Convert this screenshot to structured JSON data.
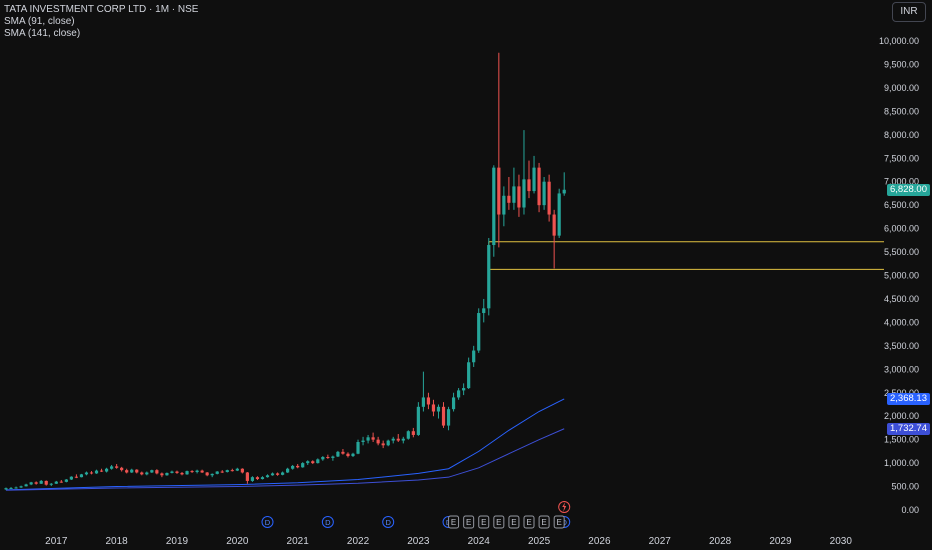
{
  "header": {
    "symbol_line": "TATA INVESTMENT CORP LTD · 1M · NSE",
    "indicators": [
      "SMA (91, close)",
      "SMA (141, close)"
    ],
    "currency_button": "INR"
  },
  "colors": {
    "background": "#0f0f0f",
    "up": "#26a69a",
    "down": "#ef5350",
    "sma_91": "#2962ff",
    "sma_141": "#3d4fd6",
    "hline": "#e0c040",
    "axis_text": "#d1d4dc"
  },
  "event_markers": {
    "dividend_label": "D",
    "earnings_label": "E",
    "split_icon": "lightning-icon",
    "dividends": [
      "2020-07",
      "2021-07",
      "2022-07",
      "2023-07",
      "2025-06"
    ],
    "earnings": [
      "2023-08",
      "2023-11",
      "2024-02",
      "2024-05",
      "2024-08",
      "2024-11",
      "2025-02",
      "2025-05"
    ],
    "split": "2025-06"
  },
  "chart_data": {
    "type": "candlestick",
    "title": "",
    "xlabel": "",
    "ylabel": "",
    "ylim": [
      0,
      10000
    ],
    "yticks": [
      0,
      500,
      1000,
      1500,
      2000,
      2500,
      3000,
      3500,
      4000,
      4500,
      5000,
      5500,
      6000,
      6500,
      7000,
      7500,
      8000,
      8500,
      9000,
      9500,
      10000
    ],
    "ytick_labels": [
      "0.00",
      "500.00",
      "1,000.00",
      "1,500.00",
      "2,000.00",
      "2,500.00",
      "3,000.00",
      "3,500.00",
      "4,000.00",
      "4,500.00",
      "5,000.00",
      "5,500.00",
      "6,000.00",
      "6,500.00",
      "7,000.00",
      "7,500.00",
      "8,000.00",
      "8,500.00",
      "9,000.00",
      "9,500.00",
      "10,000.00"
    ],
    "x_range": [
      "2016-03",
      "2030-08"
    ],
    "xtick_labels": [
      "2017",
      "2018",
      "2019",
      "2020",
      "2021",
      "2022",
      "2023",
      "2024",
      "2025",
      "2026",
      "2027",
      "2028",
      "2029",
      "2030"
    ],
    "legend": "top-left",
    "grid": false,
    "horizontal_lines": [
      5720,
      5130
    ],
    "last_price": 6828.0,
    "last_price_label": "6,828.00",
    "series": [
      {
        "name": "SMA (91, close)",
        "type": "line",
        "last_value": 2368.13,
        "last_label": "2,368.13",
        "points": [
          [
            "2016-03",
            430
          ],
          [
            "2018-01",
            500
          ],
          [
            "2020-01",
            540
          ],
          [
            "2021-01",
            580
          ],
          [
            "2022-01",
            650
          ],
          [
            "2023-01",
            780
          ],
          [
            "2023-07",
            880
          ],
          [
            "2024-01",
            1250
          ],
          [
            "2024-07",
            1700
          ],
          [
            "2025-01",
            2100
          ],
          [
            "2025-06",
            2368.13
          ]
        ]
      },
      {
        "name": "SMA (141, close)",
        "type": "line",
        "last_value": 1732.74,
        "last_label": "1,732.74",
        "points": [
          [
            "2016-03",
            420
          ],
          [
            "2018-01",
            470
          ],
          [
            "2020-01",
            500
          ],
          [
            "2021-01",
            530
          ],
          [
            "2022-01",
            570
          ],
          [
            "2023-01",
            640
          ],
          [
            "2023-07",
            700
          ],
          [
            "2024-01",
            900
          ],
          [
            "2024-07",
            1200
          ],
          [
            "2025-01",
            1500
          ],
          [
            "2025-06",
            1732.74
          ]
        ]
      }
    ],
    "candles": [
      [
        "2016-03",
        440,
        480,
        425,
        465
      ],
      [
        "2016-04",
        465,
        490,
        450,
        470
      ],
      [
        "2016-05",
        470,
        500,
        455,
        480
      ],
      [
        "2016-06",
        480,
        520,
        470,
        505
      ],
      [
        "2016-07",
        505,
        560,
        500,
        545
      ],
      [
        "2016-08",
        545,
        600,
        530,
        590
      ],
      [
        "2016-09",
        590,
        610,
        540,
        560
      ],
      [
        "2016-10",
        560,
        640,
        555,
        620
      ],
      [
        "2016-11",
        620,
        630,
        520,
        540
      ],
      [
        "2016-12",
        540,
        575,
        510,
        560
      ],
      [
        "2017-01",
        560,
        620,
        555,
        605
      ],
      [
        "2017-02",
        605,
        640,
        580,
        600
      ],
      [
        "2017-03",
        600,
        660,
        590,
        650
      ],
      [
        "2017-04",
        650,
        720,
        640,
        710
      ],
      [
        "2017-05",
        710,
        760,
        680,
        700
      ],
      [
        "2017-06",
        700,
        770,
        695,
        760
      ],
      [
        "2017-07",
        760,
        820,
        740,
        800
      ],
      [
        "2017-08",
        800,
        830,
        760,
        780
      ],
      [
        "2017-09",
        780,
        860,
        770,
        840
      ],
      [
        "2017-10",
        840,
        880,
        810,
        820
      ],
      [
        "2017-11",
        820,
        900,
        800,
        880
      ],
      [
        "2017-12",
        880,
        960,
        860,
        930
      ],
      [
        "2018-01",
        930,
        980,
        880,
        900
      ],
      [
        "2018-02",
        900,
        920,
        820,
        850
      ],
      [
        "2018-03",
        850,
        880,
        780,
        800
      ],
      [
        "2018-04",
        800,
        880,
        790,
        860
      ],
      [
        "2018-05",
        860,
        870,
        780,
        800
      ],
      [
        "2018-06",
        800,
        820,
        740,
        760
      ],
      [
        "2018-07",
        760,
        820,
        740,
        800
      ],
      [
        "2018-08",
        800,
        860,
        790,
        850
      ],
      [
        "2018-09",
        850,
        870,
        760,
        780
      ],
      [
        "2018-10",
        780,
        800,
        700,
        740
      ],
      [
        "2018-11",
        740,
        800,
        730,
        790
      ],
      [
        "2018-12",
        790,
        840,
        780,
        820
      ],
      [
        "2019-01",
        820,
        840,
        770,
        790
      ],
      [
        "2019-02",
        790,
        810,
        740,
        760
      ],
      [
        "2019-03",
        760,
        840,
        750,
        830
      ],
      [
        "2019-04",
        830,
        850,
        790,
        810
      ],
      [
        "2019-05",
        810,
        860,
        780,
        840
      ],
      [
        "2019-06",
        840,
        860,
        790,
        800
      ],
      [
        "2019-07",
        800,
        810,
        720,
        740
      ],
      [
        "2019-08",
        740,
        780,
        700,
        770
      ],
      [
        "2019-09",
        770,
        830,
        760,
        820
      ],
      [
        "2019-10",
        820,
        850,
        790,
        810
      ],
      [
        "2019-11",
        810,
        860,
        800,
        850
      ],
      [
        "2019-12",
        850,
        880,
        820,
        840
      ],
      [
        "2020-01",
        840,
        900,
        830,
        880
      ],
      [
        "2020-02",
        880,
        890,
        780,
        800
      ],
      [
        "2020-03",
        800,
        810,
        560,
        620
      ],
      [
        "2020-04",
        620,
        720,
        600,
        700
      ],
      [
        "2020-05",
        700,
        720,
        640,
        660
      ],
      [
        "2020-06",
        660,
        720,
        650,
        700
      ],
      [
        "2020-07",
        700,
        760,
        690,
        740
      ],
      [
        "2020-08",
        740,
        800,
        730,
        780
      ],
      [
        "2020-09",
        780,
        800,
        730,
        750
      ],
      [
        "2020-10",
        750,
        820,
        740,
        800
      ],
      [
        "2020-11",
        800,
        900,
        790,
        880
      ],
      [
        "2020-12",
        880,
        960,
        860,
        940
      ],
      [
        "2021-01",
        940,
        980,
        890,
        910
      ],
      [
        "2021-02",
        910,
        1020,
        900,
        1000
      ],
      [
        "2021-03",
        1000,
        1060,
        960,
        1040
      ],
      [
        "2021-04",
        1040,
        1060,
        980,
        1000
      ],
      [
        "2021-05",
        1000,
        1100,
        990,
        1080
      ],
      [
        "2021-06",
        1080,
        1150,
        1050,
        1130
      ],
      [
        "2021-07",
        1130,
        1180,
        1090,
        1110
      ],
      [
        "2021-08",
        1110,
        1160,
        1050,
        1140
      ],
      [
        "2021-09",
        1140,
        1260,
        1130,
        1240
      ],
      [
        "2021-10",
        1240,
        1300,
        1180,
        1200
      ],
      [
        "2021-11",
        1200,
        1230,
        1120,
        1150
      ],
      [
        "2021-12",
        1150,
        1220,
        1130,
        1200
      ],
      [
        "2022-01",
        1200,
        1500,
        1190,
        1450
      ],
      [
        "2022-02",
        1450,
        1560,
        1380,
        1480
      ],
      [
        "2022-03",
        1480,
        1600,
        1420,
        1550
      ],
      [
        "2022-04",
        1550,
        1650,
        1450,
        1500
      ],
      [
        "2022-05",
        1500,
        1560,
        1380,
        1420
      ],
      [
        "2022-06",
        1420,
        1480,
        1320,
        1380
      ],
      [
        "2022-07",
        1380,
        1500,
        1360,
        1480
      ],
      [
        "2022-08",
        1480,
        1560,
        1420,
        1520
      ],
      [
        "2022-09",
        1520,
        1620,
        1450,
        1480
      ],
      [
        "2022-10",
        1480,
        1560,
        1420,
        1520
      ],
      [
        "2022-11",
        1520,
        1700,
        1500,
        1680
      ],
      [
        "2022-12",
        1680,
        1750,
        1550,
        1600
      ],
      [
        "2023-01",
        1600,
        2300,
        1580,
        2200
      ],
      [
        "2023-02",
        2200,
        2950,
        2100,
        2400
      ],
      [
        "2023-03",
        2400,
        2500,
        2150,
        2250
      ],
      [
        "2023-04",
        2250,
        2350,
        2000,
        2100
      ],
      [
        "2023-05",
        2100,
        2250,
        1950,
        2200
      ],
      [
        "2023-06",
        2200,
        2300,
        1750,
        1800
      ],
      [
        "2023-07",
        1800,
        2200,
        1700,
        2150
      ],
      [
        "2023-08",
        2150,
        2500,
        2100,
        2400
      ],
      [
        "2023-09",
        2400,
        2600,
        2350,
        2550
      ],
      [
        "2023-10",
        2550,
        2700,
        2450,
        2600
      ],
      [
        "2023-11",
        2600,
        3250,
        2580,
        3150
      ],
      [
        "2023-12",
        3150,
        3500,
        3050,
        3400
      ],
      [
        "2024-01",
        3400,
        4300,
        3350,
        4200
      ],
      [
        "2024-02",
        4200,
        4500,
        4000,
        4300
      ],
      [
        "2024-03",
        4300,
        5800,
        4150,
        5650
      ],
      [
        "2024-04",
        5650,
        7350,
        5400,
        7300
      ],
      [
        "2024-05",
        7300,
        9750,
        5600,
        6300
      ],
      [
        "2024-06",
        6300,
        6900,
        6050,
        6700
      ],
      [
        "2024-07",
        6700,
        7100,
        6400,
        6550
      ],
      [
        "2024-08",
        6550,
        7300,
        6400,
        6900
      ],
      [
        "2024-09",
        6900,
        7150,
        6250,
        6450
      ],
      [
        "2024-10",
        6450,
        8100,
        6300,
        7050
      ],
      [
        "2024-11",
        7050,
        7450,
        6650,
        6800
      ],
      [
        "2024-12",
        6800,
        7550,
        6750,
        7300
      ],
      [
        "2025-01",
        7300,
        7400,
        6350,
        6500
      ],
      [
        "2025-02",
        6500,
        7100,
        6400,
        7000
      ],
      [
        "2025-03",
        7000,
        7150,
        6150,
        6300
      ],
      [
        "2025-04",
        6300,
        6400,
        5150,
        5850
      ],
      [
        "2025-05",
        5850,
        6850,
        5800,
        6750
      ],
      [
        "2025-06",
        6750,
        7200,
        6700,
        6828
      ]
    ]
  }
}
